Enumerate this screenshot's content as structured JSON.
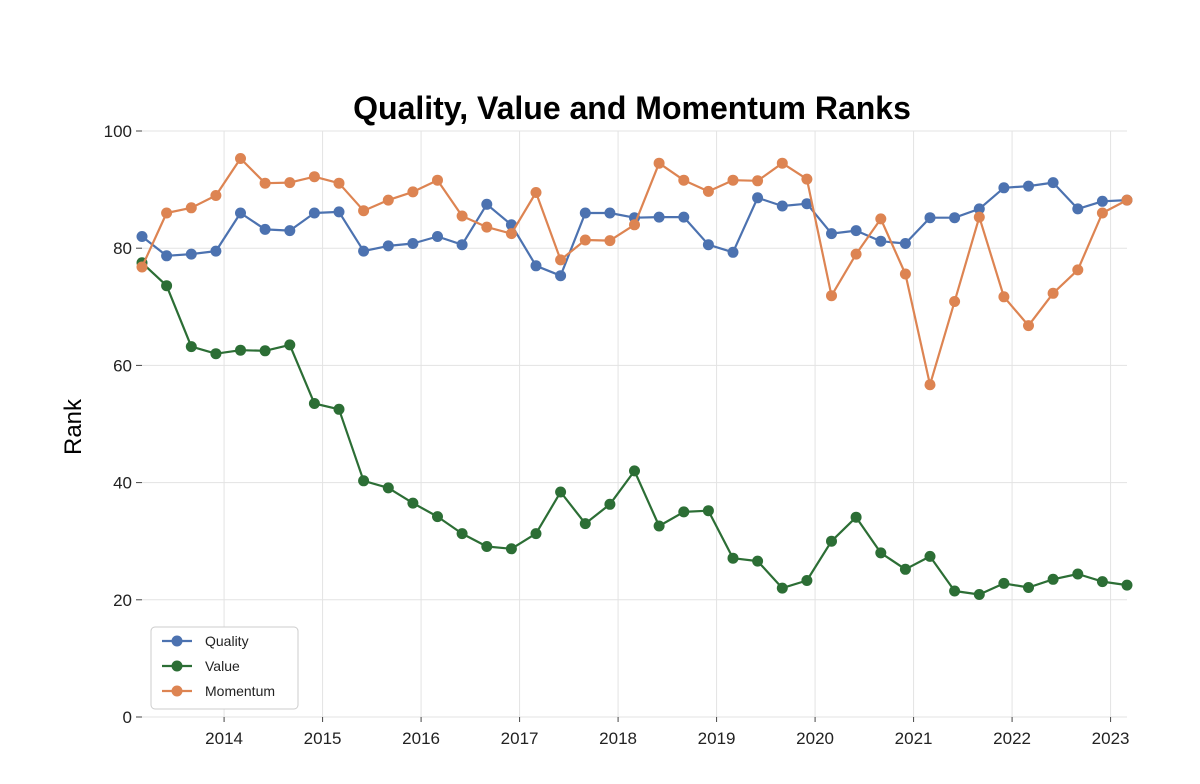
{
  "chart_data": {
    "type": "line",
    "title": "Quality, Value and Momentum Ranks",
    "xlabel": "",
    "ylabel": "Rank",
    "x_ticks": [
      "2014",
      "2015",
      "2016",
      "2017",
      "2018",
      "2019",
      "2020",
      "2021",
      "2022",
      "2023"
    ],
    "y_ticks": [
      "0",
      "20",
      "40",
      "60",
      "80",
      "100"
    ],
    "ylim": [
      0,
      100
    ],
    "xlim": [
      "2013-03",
      "2023-03"
    ],
    "grid": true,
    "legend": "lower-left",
    "x": [
      "2013-03",
      "2013-06",
      "2013-09",
      "2013-12",
      "2014-03",
      "2014-06",
      "2014-09",
      "2014-12",
      "2015-03",
      "2015-06",
      "2015-09",
      "2015-12",
      "2016-03",
      "2016-06",
      "2016-09",
      "2016-12",
      "2017-03",
      "2017-06",
      "2017-09",
      "2017-12",
      "2018-03",
      "2018-06",
      "2018-09",
      "2018-12",
      "2019-03",
      "2019-06",
      "2019-09",
      "2019-12",
      "2020-03",
      "2020-06",
      "2020-09",
      "2020-12",
      "2021-03",
      "2021-06",
      "2021-09",
      "2021-12",
      "2022-03",
      "2022-06",
      "2022-09",
      "2022-12",
      "2023-03"
    ],
    "series": [
      {
        "name": "Quality",
        "color": "#4c72b0",
        "values": [
          82,
          78.7,
          79,
          79.5,
          86,
          83.2,
          83,
          86,
          86.2,
          79.5,
          80.4,
          80.8,
          82,
          80.6,
          87.5,
          84,
          77,
          75.3,
          86,
          86,
          85.2,
          85.3,
          85.3,
          80.6,
          79.3,
          88.6,
          87.2,
          87.6,
          82.5,
          83,
          81.2,
          80.8,
          85.2,
          85.2,
          86.7,
          90.3,
          90.6,
          91.2,
          86.7,
          88,
          88.2
        ]
      },
      {
        "name": "Value",
        "color": "#2c6e35",
        "values": [
          77.5,
          73.6,
          63.2,
          62,
          62.6,
          62.5,
          63.5,
          53.5,
          52.5,
          40.3,
          39.1,
          36.5,
          34.2,
          31.3,
          29.1,
          28.7,
          31.3,
          38.4,
          33,
          36.3,
          42,
          32.6,
          35,
          35.2,
          27.1,
          26.6,
          22,
          23.3,
          30,
          34.1,
          28,
          25.2,
          27.4,
          21.5,
          20.9,
          22.8,
          22.1,
          23.5,
          24.4,
          23.1,
          22.5
        ]
      },
      {
        "name": "Momentum",
        "color": "#dd8452",
        "values": [
          76.8,
          86,
          86.9,
          89,
          95.3,
          91.1,
          91.2,
          92.2,
          91.1,
          86.4,
          88.2,
          89.6,
          91.6,
          85.5,
          83.6,
          82.5,
          89.5,
          78,
          81.4,
          81.3,
          84,
          94.5,
          91.6,
          89.7,
          91.6,
          91.5,
          94.5,
          91.8,
          71.9,
          79,
          85,
          75.6,
          56.7,
          70.9,
          85.3,
          71.7,
          66.8,
          72.3,
          76.3,
          86,
          88.2
        ]
      }
    ]
  }
}
